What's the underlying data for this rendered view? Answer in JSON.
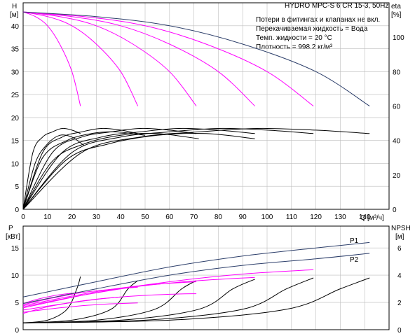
{
  "header": {
    "title": "HYDRO MPC-S 6 CR 15-3, 50Hz",
    "info": [
      "Потери в фитингах и клапанах не вкл.",
      "Перекачиваемая жидкость = Вода",
      "Темп. жидкости = 20 °C",
      "Плотность = 998.2 кг/м³"
    ]
  },
  "colors": {
    "magenta": "#ff00ff",
    "navy": "#2c3e6a",
    "black": "#000000",
    "grid": "#bdbdbd"
  },
  "chart_data": [
    {
      "type": "line",
      "name": "head",
      "ylabel": "H",
      "yunit": "[м]",
      "xlabel": "Q",
      "xunit": "[м³/ч]",
      "ylabel_right": "eta",
      "yunit_right": "[%]",
      "xlim": [
        0,
        150
      ],
      "xticks": [
        0,
        10,
        20,
        30,
        40,
        50,
        60,
        70,
        80,
        90,
        100,
        110,
        120,
        130,
        140
      ],
      "ylim": [
        0,
        45
      ],
      "yticks": [
        0,
        5,
        10,
        15,
        20,
        25,
        30,
        35,
        40
      ],
      "ylim_right": [
        0,
        120
      ],
      "yticks_right": [
        0,
        20,
        40,
        60,
        80,
        100
      ],
      "grid": true,
      "curves": [
        {
          "color": "magenta",
          "points": [
            [
              0,
              43
            ],
            [
              5,
              42
            ],
            [
              10,
              40
            ],
            [
              15,
              36
            ],
            [
              20,
              30
            ],
            [
              23.5,
              22.5
            ]
          ]
        },
        {
          "color": "magenta",
          "points": [
            [
              0,
              43
            ],
            [
              10,
              42
            ],
            [
              20,
              40
            ],
            [
              30,
              36
            ],
            [
              40,
              30
            ],
            [
              47,
              22.5
            ]
          ]
        },
        {
          "color": "magenta",
          "points": [
            [
              0,
              43
            ],
            [
              15,
              42
            ],
            [
              30,
              40
            ],
            [
              45,
              36
            ],
            [
              60,
              30
            ],
            [
              71,
              22.5
            ]
          ]
        },
        {
          "color": "magenta",
          "points": [
            [
              0,
              43
            ],
            [
              20,
              42
            ],
            [
              40,
              40
            ],
            [
              60,
              36
            ],
            [
              80,
              30
            ],
            [
              95,
              22.5
            ]
          ]
        },
        {
          "color": "magenta",
          "points": [
            [
              0,
              43
            ],
            [
              25,
              42
            ],
            [
              50,
              40
            ],
            [
              75,
              36
            ],
            [
              100,
              30
            ],
            [
              119,
              22.5
            ]
          ]
        },
        {
          "color": "navy",
          "points": [
            [
              0,
              43
            ],
            [
              30,
              42
            ],
            [
              60,
              40
            ],
            [
              90,
              36
            ],
            [
              120,
              30
            ],
            [
              142,
              22.5
            ]
          ]
        }
      ],
      "eff_curves": [
        {
          "points": [
            [
              0,
              0
            ],
            [
              4,
              33
            ],
            [
              8,
              42
            ],
            [
              12,
              45
            ],
            [
              16,
              47
            ],
            [
              20,
              46
            ],
            [
              23.5,
              44
            ]
          ]
        },
        {
          "points": [
            [
              0,
              0
            ],
            [
              8,
              33
            ],
            [
              16,
              42
            ],
            [
              24,
              45
            ],
            [
              32,
              47
            ],
            [
              40,
              46
            ],
            [
              47,
              44
            ]
          ]
        },
        {
          "points": [
            [
              0,
              0
            ],
            [
              12,
              33
            ],
            [
              24,
              42
            ],
            [
              36,
              45
            ],
            [
              48,
              47
            ],
            [
              60,
              46
            ],
            [
              71,
              44
            ]
          ]
        },
        {
          "points": [
            [
              0,
              0
            ],
            [
              16,
              33
            ],
            [
              32,
              42
            ],
            [
              48,
              45
            ],
            [
              64,
              47
            ],
            [
              80,
              46
            ],
            [
              95,
              44
            ]
          ]
        },
        {
          "points": [
            [
              0,
              0
            ],
            [
              20,
              33
            ],
            [
              40,
              42
            ],
            [
              60,
              45
            ],
            [
              80,
              47
            ],
            [
              100,
              46
            ],
            [
              119,
              44
            ]
          ]
        },
        {
          "points": [
            [
              0,
              0
            ],
            [
              24,
              33
            ],
            [
              48,
              42
            ],
            [
              72,
              45
            ],
            [
              96,
              47
            ],
            [
              120,
              46
            ],
            [
              142,
              44
            ]
          ]
        },
        {
          "points": [
            [
              0,
              0
            ],
            [
              5,
              27
            ],
            [
              10,
              38
            ],
            [
              15,
              43
            ],
            [
              20,
              42
            ],
            [
              25,
              37
            ]
          ]
        },
        {
          "points": [
            [
              0,
              0
            ],
            [
              8,
              30
            ],
            [
              18,
              40
            ],
            [
              28,
              44
            ],
            [
              38,
              45
            ],
            [
              50,
              43
            ]
          ]
        },
        {
          "points": [
            [
              0,
              0
            ],
            [
              12,
              28
            ],
            [
              25,
              38
            ],
            [
              40,
              43
            ],
            [
              55,
              44
            ],
            [
              72,
              41
            ]
          ]
        },
        {
          "points": [
            [
              0,
              0
            ],
            [
              18,
              29
            ],
            [
              35,
              38
            ],
            [
              55,
              43
            ],
            [
              75,
              44
            ],
            [
              95,
              41
            ]
          ]
        }
      ]
    },
    {
      "type": "line",
      "name": "power_npsh",
      "ylabel": "P",
      "yunit": "[кВт]",
      "ylabel_right": "NPSH",
      "yunit_right": "[м]",
      "xlim": [
        0,
        150
      ],
      "ylim": [
        0,
        19
      ],
      "yticks": [
        0,
        5,
        10,
        15
      ],
      "ylim_right": [
        0,
        7.6
      ],
      "yticks_right": [
        0,
        2,
        4,
        6
      ],
      "grid": true,
      "series_labels": [
        "P1",
        "P2"
      ],
      "p1": [
        [
          0,
          6
        ],
        [
          30,
          8.8
        ],
        [
          60,
          11.5
        ],
        [
          90,
          13.5
        ],
        [
          120,
          15
        ],
        [
          142,
          16
        ]
      ],
      "p2": [
        [
          0,
          4.8
        ],
        [
          30,
          7.5
        ],
        [
          60,
          10
        ],
        [
          90,
          11.8
        ],
        [
          120,
          13
        ],
        [
          142,
          14
        ]
      ],
      "p_magenta": [
        {
          "points": [
            [
              0,
              4.8
            ],
            [
              6,
              5.6
            ],
            [
              12,
              6.2
            ],
            [
              18,
              6.6
            ],
            [
              23.5,
              6.8
            ]
          ]
        },
        {
          "points": [
            [
              0,
              4.6
            ],
            [
              12,
              5.8
            ],
            [
              24,
              6.8
            ],
            [
              36,
              7.4
            ],
            [
              47,
              7.8
            ]
          ]
        },
        {
          "points": [
            [
              0,
              4.4
            ],
            [
              18,
              6.0
            ],
            [
              36,
              7.4
            ],
            [
              54,
              8.3
            ],
            [
              71,
              8.8
            ]
          ]
        },
        {
          "points": [
            [
              0,
              4.2
            ],
            [
              24,
              6.3
            ],
            [
              48,
              8.0
            ],
            [
              72,
              9.0
            ],
            [
              95,
              9.6
            ]
          ]
        },
        {
          "points": [
            [
              0,
              4
            ],
            [
              30,
              6.8
            ],
            [
              60,
              8.8
            ],
            [
              90,
              10.2
            ],
            [
              119,
              11
            ]
          ]
        },
        {
          "points": [
            [
              0,
              3.6
            ],
            [
              20,
              5
            ],
            [
              40,
              6
            ],
            [
              60,
              6.5
            ],
            [
              71,
              6.6
            ]
          ]
        },
        {
          "points": [
            [
              0,
              3.2
            ],
            [
              15,
              4
            ],
            [
              30,
              4.6
            ],
            [
              40,
              4.8
            ],
            [
              47,
              4.9
            ]
          ]
        },
        {
          "points": [
            [
              0,
              3.0
            ],
            [
              10,
              4.2
            ],
            [
              20,
              5
            ],
            [
              30,
              5.6
            ],
            [
              40,
              6
            ]
          ]
        }
      ],
      "npsh": [
        {
          "points": [
            [
              0,
              0.5
            ],
            [
              10,
              0.7
            ],
            [
              18,
              1.5
            ],
            [
              22,
              3
            ],
            [
              23.5,
              3.9
            ]
          ]
        },
        {
          "points": [
            [
              0,
              0.5
            ],
            [
              20,
              0.7
            ],
            [
              36,
              1.5
            ],
            [
              43,
              3
            ],
            [
              47,
              3.6
            ]
          ]
        },
        {
          "points": [
            [
              0,
              0.5
            ],
            [
              30,
              0.7
            ],
            [
              54,
              1.5
            ],
            [
              65,
              3
            ],
            [
              71,
              3.6
            ]
          ]
        },
        {
          "points": [
            [
              0,
              0.5
            ],
            [
              40,
              0.7
            ],
            [
              72,
              1.5
            ],
            [
              86,
              3
            ],
            [
              95,
              3.7
            ]
          ]
        },
        {
          "points": [
            [
              0,
              0.5
            ],
            [
              50,
              0.7
            ],
            [
              90,
              1.5
            ],
            [
              108,
              3
            ],
            [
              119,
              3.8
            ]
          ]
        },
        {
          "points": [
            [
              0,
              0.5
            ],
            [
              60,
              0.7
            ],
            [
              108,
              1.5
            ],
            [
              130,
              3
            ],
            [
              142,
              3.8
            ]
          ]
        }
      ]
    }
  ]
}
